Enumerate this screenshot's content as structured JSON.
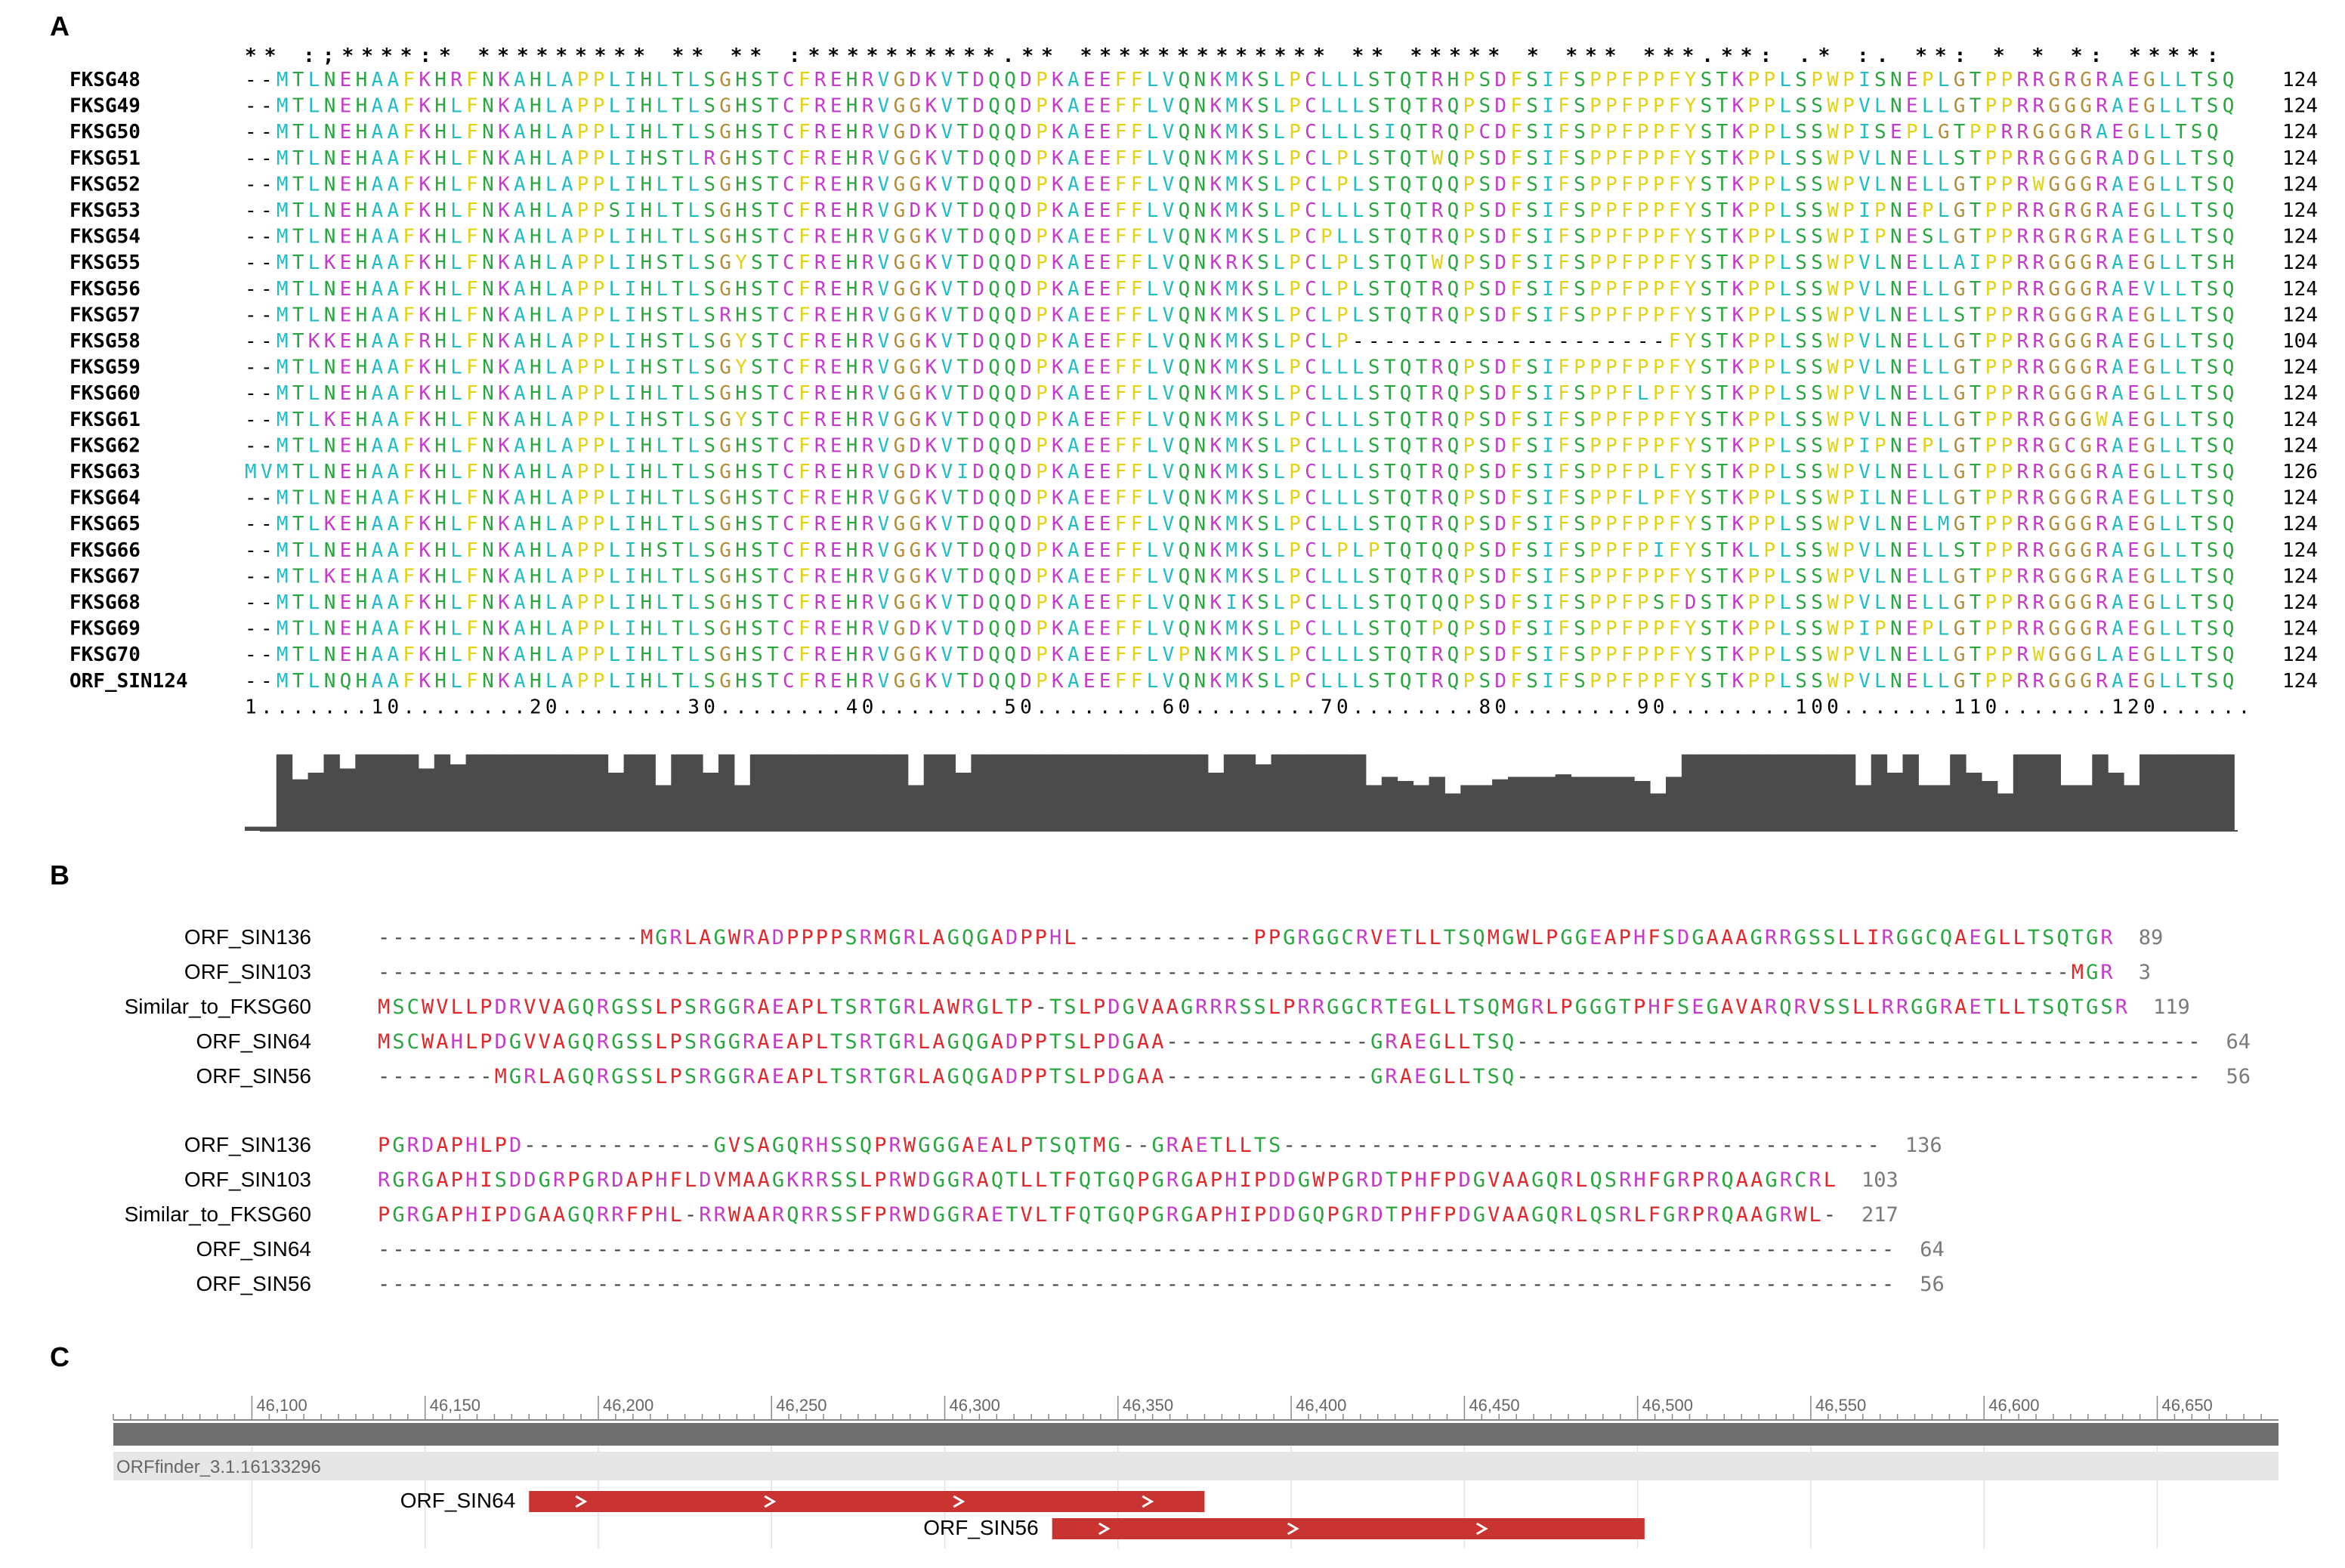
{
  "panels": {
    "a": "A",
    "b": "B",
    "c": "C"
  },
  "colors": {
    "cyan": "#21bdc6",
    "green": "#2aa640",
    "magenta": "#c43bc9",
    "yellow": "#e2d214",
    "tan": "#b38d3a",
    "red": "#e3262a",
    "black": "#000000",
    "gap": "#000000",
    "num_gray": "#7a7a7a",
    "bar": "#4b4b4b",
    "orf": "#c93432"
  },
  "panel_a": {
    "consensus": "** :;****:* ********* ** ** :**********.** ************* ** *****                        * *** ***.**: .* :. **: * * *: ****:",
    "rows": [
      {
        "name": "FKSG48",
        "seq": "--MTLNEHAAFKHRFNKAHLAPPLIHLTLSGHSTCFREHRVGDKVTDQQDPKAEEFFLVQNKMKSLPCLLLSTQTRHPSDFSIFSPPFPPFYSTKPPLSPWPISNEPLGTPPRRGRGRAEGLLTSQ",
        "end": "124"
      },
      {
        "name": "FKSG49",
        "seq": "--MTLNEHAAFKHLFNKAHLAPPLIHLTLSGHSTCFREHRVGGKVTDQQDPKAEEFFLVQNKMKSLPCLLLSTQTRQPSDFSIFSPPFPPFYSTKPPLSSWPVLNELLGTPPRRGGGRAEGLLTSQ",
        "end": "124"
      },
      {
        "name": "FKSG50",
        "seq": "--MTLNEHAAFKHLFNKAHLAPPLIHLTLSGHSTCFREHRVGDKVTDQQDPKAEEFFLVQNKMKSLPCLLLSIQTRQPCDFSIFSPPFPPFYSTKPPLSSWPISEPLGTPPRRGGGRAEGLLTSQ",
        "end": "124"
      },
      {
        "name": "FKSG51",
        "seq": "--MTLNEHAAFKHLFNKAHLAPPLIHSTLRGHSTCFREHRVGGKVTDQQDPKAEEFFLVQNKMKSLPCLPLSTQTWQPSDFSIFSPPFPPFYSTKPPLSSWPVLNELLSTPPRRGGGRADGLLTSQ",
        "end": "124"
      },
      {
        "name": "FKSG52",
        "seq": "--MTLNEHAAFKHLFNKAHLAPPLIHLTLSGHSTCFREHRVGGKVTDQQDPKAEEFFLVQNKMKSLPCLPLSTQTQQPSDFSIFSPPFPPFYSTKPPLSSWPVLNELLGTPPRWGGGRAEGLLTSQ",
        "end": "124"
      },
      {
        "name": "FKSG53",
        "seq": "--MTLNEHAAFKHLFNKAHLAPPSIHLTLSGHSTCFREHRVGDKVTDQQDPKAEEFFLVQNKMKSLPCLLLSTQTRQPSDFSIFSPPFPPFYSTKPPLSSWPIPNEPLGTPPRRGRGRAEGLLTSQ",
        "end": "124"
      },
      {
        "name": "FKSG54",
        "seq": "--MTLNEHAAFKHLFNKAHLAPPLIHLTLSGHSTCFREHRVGGKVTDQQDPKAEEFFLVQNKMKSLPCPLLSTQTRQPSDFSIFSPPFPPFYSTKPPLSSWPIPNESLGTPPRRGRGRAEGLLTSQ",
        "end": "124"
      },
      {
        "name": "FKSG55",
        "seq": "--MTLKEHAAFKHLFNKAHLAPPLIHSTLSGYSTCFREHRVGGKVTDQQDPKAEEFFLVQNKRKSLPCLPLSTQTWQPSDFSIFSPPFPPFYSTKPPLSSWPVLNELLAIPPRRGGGRAEGLLTSH",
        "end": "124"
      },
      {
        "name": "FKSG56",
        "seq": "--MTLNEHAAFKHLFNKAHLAPPLIHLTLSGHSTCFREHRVGGKVTDQQDPKAEEFFLVQNKMKSLPCLPLSTQTRQPSDFSIFSPPFPPFYSTKPPLSSWPVLNELLGTPPRRGGGRAEVLLTSQ",
        "end": "124"
      },
      {
        "name": "FKSG57",
        "seq": "--MTLNEHAAFKHLFNKAHLAPPLIHSTLSRHSTCFREHRVGGKVTDQQDPKAEEFFLVQNKMKSLPCLPLSTQTRQPSDFSIFSPPFPPFYSTKPPLSSWPVLNELLSTPPRRGGGRAEGLLTSQ",
        "end": "124"
      },
      {
        "name": "FKSG58",
        "seq": "--MTKKEHAAFRHLFNKAHLAPPLIHSTLSGYSTCFREHRVGGKVTDQQDPKAEEFFLVQNKMKSLPCLP--------------------FYSTKPPLSSWPVLNELLGTPPRRGGGRAEGLLTSQ",
        "end": "104"
      },
      {
        "name": "FKSG59",
        "seq": "--MTLNEHAAFKHLFNKAHLAPPLIHSTLSGYSTCFREHRVGGKVTDQQDPKAEEFFLVQNKMKSLPCLLLSTQTRQPSDFSIFPPPFPPFYSTKPPLSSWPVLNELLGTPPRRGGGRAEGLLTSQ",
        "end": "124"
      },
      {
        "name": "FKSG60",
        "seq": "--MTLNEHAAFKHLFNKAHLAPPLIHLTLSGHSTCFREHRVGGKVTDQQDPKAEEFFLVQNKMKSLPCLLLSTQTRQPSDFSIFSPPFLPFYSTKPPLSSWPVLNELLGTPPRRGGGRAEGLLTSQ",
        "end": "124"
      },
      {
        "name": "FKSG61",
        "seq": "--MTLKEHAAFKHLFNKAHLAPPLIHSTLSGYSTCFREHRVGGKVTDQQDPKAEEFFLVQNKMKSLPCLLLSTQTRQPSDFSIFSPPFPPFYSTKPPLSSWPVLNELLGTPPRRGGGWAEGLLTSQ",
        "end": "124"
      },
      {
        "name": "FKSG62",
        "seq": "--MTLNEHAAFKHLFNKAHLAPPLIHLTLSGHSTCFREHRVGDKVTDQQDPKAEEFFLVQNKMKSLPCLLLSTQTRQPSDFSIFSPPFPPFYSTKPPLSSWPIPNEPLGTPPRRGCGRAEGLLTSQ",
        "end": "124"
      },
      {
        "name": "FKSG63",
        "seq": "MVMTLNEHAAFKHLFNKAHLAPPLIHLTLSGHSTCFREHRVGDKVIDQQDPKAEEFFLVQNKMKSLPCLLLSTQTRQPSDFSIFSPPFPLFYSTKPPLSSWPVLNELLGTPPRRGGGRAEGLLTSQ",
        "end": "126"
      },
      {
        "name": "FKSG64",
        "seq": "--MTLNEHAAFKHLFNKAHLAPPLIHLTLSGHSTCFREHRVGGKVTDQQDPKAEEFFLVQNKMKSLPCLLLSTQTRQPSDFSIFSPPFLPFYSTKPPLSSWPILNELLGTPPRRGGGRAEGLLTSQ",
        "end": "124"
      },
      {
        "name": "FKSG65",
        "seq": "--MTLKEHAAFKHLFNKAHLAPPLIHLTLSGHSTCFREHRVGGKVTDQQDPKAEEFFLVQNKMKSLPCLLLSTQTRQPSDFSIFSPPFPPFYSTKPPLSSWPVLNELMGTPPRRGGGRAEGLLTSQ",
        "end": "124"
      },
      {
        "name": "FKSG66",
        "seq": "--MTLNEHAAFKHLFNKAHLAPPLIHSTLSGHSTCFREHRVGGKVTDQQDPKAEEFFLVQNKMKSLPCLPLPTQTQQPSDFSIFSPPFPIFYSTKLPLSSWPVLNELLSTPPRRGGGRAEGLLTSQ",
        "end": "124"
      },
      {
        "name": "FKSG67",
        "seq": "--MTLKEHAAFKHLFNKAHLAPPLIHLTLSGHSTCFREHRVGGKVTDQQDPKAEEFFLVQNKMKSLPCLLLSTQTRQPSDFSIFSPPFPPFYSTKPPLSSWPVLNELLGTPPRRGGGRAEGLLTSQ",
        "end": "124"
      },
      {
        "name": "FKSG68",
        "seq": "--MTLNEHAAFKHLFNKAHLAPPLIHLTLSGHSTCFREHRVGGKVTDQQDPKAEEFFLVQNKIKSLPCLLLSTQTQQPSDFSIFSPPFPSFDSTKPPLSSWPVLNELLGTPPRRGGGRAEGLLTSQ",
        "end": "124"
      },
      {
        "name": "FKSG69",
        "seq": "--MTLNEHAAFKHLFNKAHLAPPLIHLTLSGHSTCFREHRVGDKVTDQQDPKAEEFFLVQNKMKSLPCLLLSTQTPQPSDFSIFSPPFPPFYSTKPPLSSWPIPNEPLGTPPRRGGGRAEGLLTSQ",
        "end": "124"
      },
      {
        "name": "FKSG70",
        "seq": "--MTLNEHAAFKHLFNKAHLAPPLIHLTLSGHSTCFREHRVGGKVTDQQDPKAEEFFLVPNKMKSLPCLLLSTQTRQPSDFSIFSPPFPPFYSTKPPLSSWPVLNELLGTPPRWGGGLAEGLLTSQ",
        "end": "124"
      },
      {
        "name": "ORF_SIN124",
        "seq": "--MTLNQHAAFKHLFNKAHLAPPLIHLTLSGHSTCFREHRVGGKVTDQQDPKAEEFFLVQNKMKSLPCLLLSTQTRQPSDFSIFSPPFPPFYSTKPPLSSWPVLNELLGTPPRRGGGRAEGLLTSQ",
        "end": "124"
      }
    ],
    "ruler": "1.......10........20........30........40........50........60........70........80........90........100.......110.......120......",
    "conservation_heights": [
      0.05,
      0.05,
      0.92,
      0.62,
      0.7,
      0.92,
      0.75,
      0.92,
      0.92,
      0.92,
      0.92,
      0.75,
      0.92,
      0.8,
      0.92,
      0.92,
      0.92,
      0.92,
      0.92,
      0.92,
      0.92,
      0.92,
      0.92,
      0.7,
      0.92,
      0.92,
      0.55,
      0.92,
      0.92,
      0.7,
      0.92,
      0.55,
      0.92,
      0.92,
      0.92,
      0.92,
      0.92,
      0.92,
      0.92,
      0.92,
      0.92,
      0.92,
      0.55,
      0.92,
      0.92,
      0.7,
      0.92,
      0.92,
      0.92,
      0.92,
      0.92,
      0.92,
      0.92,
      0.92,
      0.92,
      0.92,
      0.92,
      0.92,
      0.92,
      0.92,
      0.92,
      0.7,
      0.92,
      0.92,
      0.8,
      0.92,
      0.92,
      0.92,
      0.92,
      0.92,
      0.92,
      0.55,
      0.65,
      0.6,
      0.55,
      0.65,
      0.45,
      0.55,
      0.55,
      0.62,
      0.65,
      0.65,
      0.65,
      0.68,
      0.65,
      0.65,
      0.65,
      0.65,
      0.6,
      0.45,
      0.65,
      0.92,
      0.92,
      0.92,
      0.92,
      0.92,
      0.92,
      0.92,
      0.92,
      0.92,
      0.92,
      0.92,
      0.55,
      0.92,
      0.7,
      0.92,
      0.55,
      0.55,
      0.92,
      0.7,
      0.6,
      0.45,
      0.92,
      0.92,
      0.92,
      0.55,
      0.55,
      0.92,
      0.7,
      0.55,
      0.92,
      0.92,
      0.92,
      0.92,
      0.92,
      0.92
    ]
  },
  "panel_b": {
    "block1": [
      {
        "name": "ORF_SIN136",
        "seq": "------------------MGRLAGWRADPPPPSRMGRLAGQGADPPHL------------PPGRGGCRVETLLTSQMGWLPGGEAPHFSDGAAAGRRGSSLLIRGGCQAEGLLTSQTGR",
        "end": "89"
      },
      {
        "name": "ORF_SIN103",
        "seq": "--------------------------------------------------------------------------------------------------------------------MGR",
        "end": "3"
      },
      {
        "name": "Similar_to_FKSG60",
        "seq": "MSCWVLLPDRVVAGQRGSSLPSRGGRAEAPLTSRTGRLAWRGLTP-TSLPDGVAAGRRRSSLPRRGGCRTEGLLTSQMGRLPGGGTPHFSEGAVARQRVSSLLRRGGRAETLLTSQTGSR",
        "end": "119"
      },
      {
        "name": "ORF_SIN64",
        "seq": "MSCWAHLPDGVVAGQRGSSLPSRGGRAEAPLTSRTGRLAGQGADPPTSLPDGAA--------------GRAEGLLTSQ-----------------------------------------------",
        "end": "64"
      },
      {
        "name": "ORF_SIN56",
        "seq": "--------MGRLAGQRGSSLPSRGGRAEAPLTSRTGRLAGQGADPPTSLPDGAA--------------GRAEGLLTSQ-----------------------------------------------",
        "end": "56"
      }
    ],
    "block2": [
      {
        "name": "ORF_SIN136",
        "seq": "PGRDAPHLPD-------------GVSAGQRHSSQPRWGGGAEALPTSQTMG--GRAETLLTS-----------------------------------------",
        "end": "136"
      },
      {
        "name": "ORF_SIN103",
        "seq": "RGRGAPHISDDGRPGRDAPHFLDVMAAGKRRSSLPRWDGGRAQTLLTFQTGQPGRGAPHIPDDGWPGRDTPHFPDGVAAGQRLQSRHFGRPRQAAGRCRL",
        "end": "103"
      },
      {
        "name": "Similar_to_FKSG60",
        "seq": "PGRGAPHIPDGAAGQRRFPHL-RRWAARQRRSSFPRWDGGRAETVLTFQTGQPGRGAPHIPDDGQPGRDTPHFPDGVAAGQRLQSRLFGRPRQAAGRWL-",
        "end": "217"
      },
      {
        "name": "ORF_SIN64",
        "seq": "--------------------------------------------------------------------------------------------------------",
        "end": "64"
      },
      {
        "name": "ORF_SIN56",
        "seq": "--------------------------------------------------------------------------------------------------------",
        "end": "56"
      }
    ]
  },
  "panel_c": {
    "ticks": [
      "46,100",
      "46,150",
      "46,200",
      "46,250",
      "46,300",
      "46,350",
      "46,400",
      "46,450",
      "46,500",
      "46,550",
      "46,600",
      "46,650"
    ],
    "track_label": "ORFfinder_3.1.16133296",
    "orfs": [
      {
        "name": "ORF_SIN64",
        "start": 46180,
        "end": 46375
      },
      {
        "name": "ORF_SIN56",
        "start": 46331,
        "end": 46502
      }
    ]
  }
}
